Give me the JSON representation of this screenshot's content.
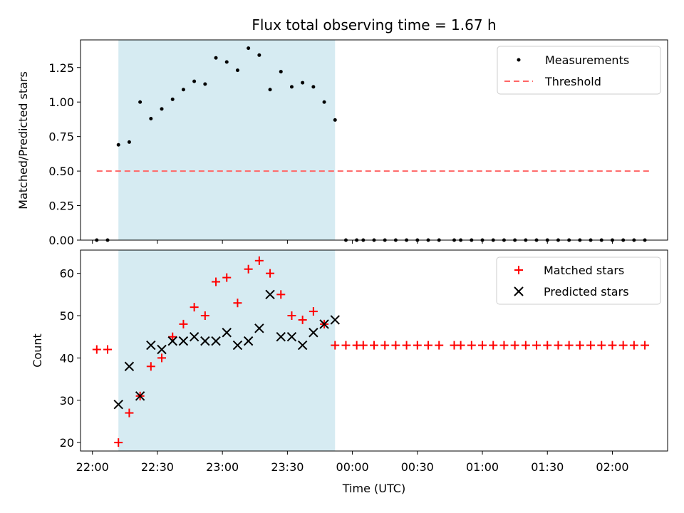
{
  "chart_data": {
    "title": "Flux total observing time = 1.67 h",
    "xlabel": "Time (UTC)",
    "x_ticks": [
      "22:00",
      "22:30",
      "23:00",
      "23:30",
      "00:00",
      "00:30",
      "01:00",
      "01:30",
      "02:00"
    ],
    "x_tick_minutes": [
      0,
      30,
      60,
      90,
      120,
      150,
      180,
      210,
      240
    ],
    "xlim_minutes": [
      -5.5,
      265.5
    ],
    "shaded_span_minutes": [
      12,
      112
    ],
    "colors": {
      "shade": "#add8e6",
      "matched": "#ff0000",
      "predicted": "#000000",
      "threshold": "#ff6666",
      "measurements": "#000000"
    },
    "charts": [
      {
        "type": "scatter",
        "ylabel": "Matched/Predicted stars",
        "ylim": [
          0,
          1.45
        ],
        "y_ticks": [
          "0.00",
          "0.25",
          "0.50",
          "0.75",
          "1.00",
          "1.25"
        ],
        "y_tick_values": [
          0,
          0.25,
          0.5,
          0.75,
          1.0,
          1.25
        ],
        "legend_position": "upper right",
        "threshold": {
          "name": "Threshold",
          "value": 0.5,
          "x_range": [
            2,
            257
          ]
        },
        "series": [
          {
            "name": "Measurements",
            "x": [
              2,
              7,
              12,
              17,
              22,
              27,
              32,
              37,
              42,
              47,
              52,
              57,
              62,
              67,
              72,
              77,
              82,
              87,
              92,
              97,
              102,
              107,
              112,
              117,
              122,
              125,
              130,
              135,
              140,
              145,
              150,
              155,
              160,
              167,
              170,
              175,
              180,
              185,
              190,
              195,
              200,
              205,
              210,
              215,
              220,
              225,
              230,
              235,
              240,
              245,
              250,
              255
            ],
            "y": [
              0,
              0,
              0.69,
              0.71,
              1.0,
              0.88,
              0.95,
              1.02,
              1.09,
              1.15,
              1.13,
              1.32,
              1.29,
              1.23,
              1.39,
              1.34,
              1.09,
              1.22,
              1.11,
              1.14,
              1.11,
              1.0,
              0.87,
              0,
              0,
              0,
              0,
              0,
              0,
              0,
              0,
              0,
              0,
              0,
              0,
              0,
              0,
              0,
              0,
              0,
              0,
              0,
              0,
              0,
              0,
              0,
              0,
              0,
              0,
              0,
              0,
              0
            ]
          }
        ]
      },
      {
        "type": "scatter",
        "ylabel": "Count",
        "ylim": [
          18,
          65.5
        ],
        "y_ticks": [
          "20",
          "30",
          "40",
          "50",
          "60"
        ],
        "y_tick_values": [
          20,
          30,
          40,
          50,
          60
        ],
        "legend_position": "upper right",
        "series": [
          {
            "name": "Matched stars",
            "marker": "+",
            "x": [
              2,
              7,
              12,
              17,
              22,
              27,
              32,
              37,
              42,
              47,
              52,
              57,
              62,
              67,
              72,
              77,
              82,
              87,
              92,
              97,
              102,
              107,
              112,
              117,
              122,
              125,
              130,
              135,
              140,
              145,
              150,
              155,
              160,
              167,
              170,
              175,
              180,
              185,
              190,
              195,
              200,
              205,
              210,
              215,
              220,
              225,
              230,
              235,
              240,
              245,
              250,
              255
            ],
            "y": [
              42,
              42,
              20,
              27,
              31,
              38,
              40,
              45,
              48,
              52,
              50,
              58,
              59,
              53,
              61,
              63,
              60,
              55,
              50,
              49,
              51,
              48,
              43,
              43,
              43,
              43,
              43,
              43,
              43,
              43,
              43,
              43,
              43,
              43,
              43,
              43,
              43,
              43,
              43,
              43,
              43,
              43,
              43,
              43,
              43,
              43,
              43,
              43,
              43,
              43,
              43,
              43
            ]
          },
          {
            "name": "Predicted stars",
            "marker": "x",
            "x": [
              12,
              17,
              22,
              27,
              32,
              37,
              42,
              47,
              52,
              57,
              62,
              67,
              72,
              77,
              82,
              87,
              92,
              97,
              102,
              107,
              112
            ],
            "y": [
              29,
              38,
              31,
              43,
              42,
              44,
              44,
              45,
              44,
              44,
              46,
              43,
              44,
              47,
              55,
              45,
              45,
              43,
              46,
              48,
              49
            ]
          }
        ]
      }
    ]
  }
}
